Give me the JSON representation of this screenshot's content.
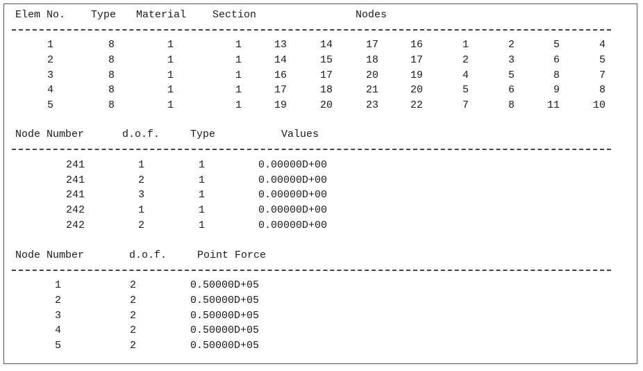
{
  "section1": {
    "headers": {
      "elem_no": "Elem No.",
      "type": "Type",
      "material": "Material",
      "section": "Section",
      "nodes": "Nodes"
    },
    "rows": [
      {
        "elem": "1",
        "type": "8",
        "material": "1",
        "section": "1",
        "nodes": [
          "13",
          "14",
          "17",
          "16",
          "1",
          "2",
          "5",
          "4"
        ]
      },
      {
        "elem": "2",
        "type": "8",
        "material": "1",
        "section": "1",
        "nodes": [
          "14",
          "15",
          "18",
          "17",
          "2",
          "3",
          "6",
          "5"
        ]
      },
      {
        "elem": "3",
        "type": "8",
        "material": "1",
        "section": "1",
        "nodes": [
          "16",
          "17",
          "20",
          "19",
          "4",
          "5",
          "8",
          "7"
        ]
      },
      {
        "elem": "4",
        "type": "8",
        "material": "1",
        "section": "1",
        "nodes": [
          "17",
          "18",
          "21",
          "20",
          "5",
          "6",
          "9",
          "8"
        ]
      },
      {
        "elem": "5",
        "type": "8",
        "material": "1",
        "section": "1",
        "nodes": [
          "19",
          "20",
          "23",
          "22",
          "7",
          "8",
          "11",
          "10"
        ]
      }
    ]
  },
  "section2": {
    "headers": {
      "node_number": "Node Number",
      "dof": "d.o.f.",
      "type": "Type",
      "values": "Values"
    },
    "rows": [
      {
        "node": "241",
        "dof": "1",
        "type": "1",
        "value": "0.00000D+00"
      },
      {
        "node": "241",
        "dof": "2",
        "type": "1",
        "value": "0.00000D+00"
      },
      {
        "node": "241",
        "dof": "3",
        "type": "1",
        "value": "0.00000D+00"
      },
      {
        "node": "242",
        "dof": "1",
        "type": "1",
        "value": "0.00000D+00"
      },
      {
        "node": "242",
        "dof": "2",
        "type": "1",
        "value": "0.00000D+00"
      }
    ]
  },
  "section3": {
    "headers": {
      "node_number": "Node Number",
      "dof": "d.o.f.",
      "point_force": "Point Force"
    },
    "rows": [
      {
        "node": "1",
        "dof": "2",
        "force": "0.50000D+05"
      },
      {
        "node": "2",
        "dof": "2",
        "force": "0.50000D+05"
      },
      {
        "node": "3",
        "dof": "2",
        "force": "0.50000D+05"
      },
      {
        "node": "4",
        "dof": "2",
        "force": "0.50000D+05"
      },
      {
        "node": "5",
        "dof": "2",
        "force": "0.50000D+05"
      }
    ]
  }
}
